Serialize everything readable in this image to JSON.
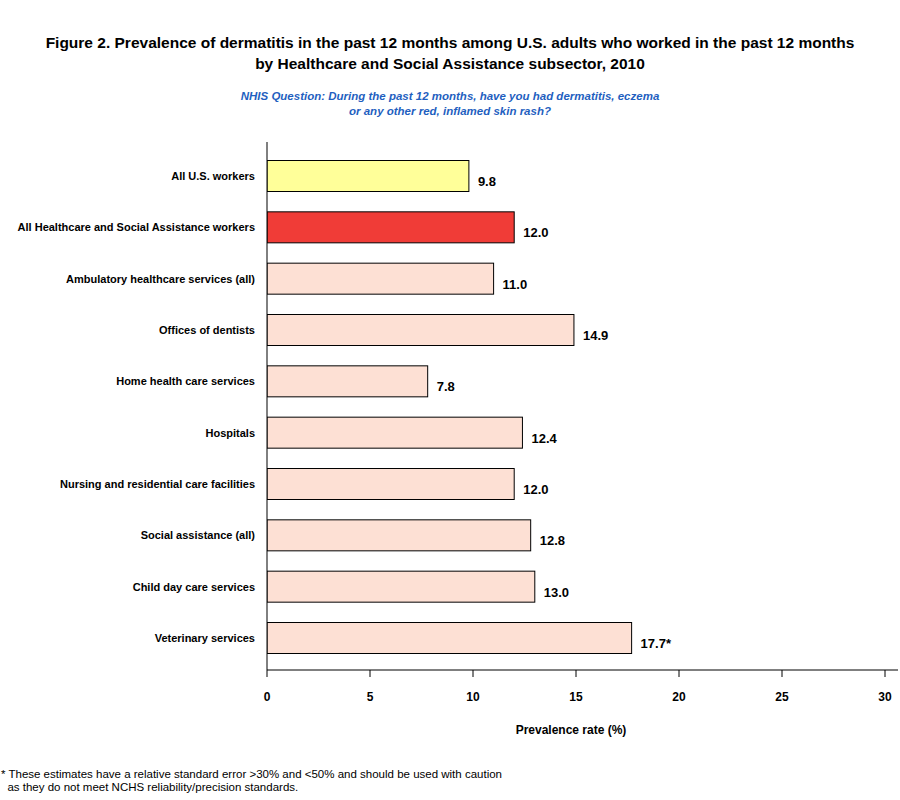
{
  "chart_data": {
    "type": "bar",
    "orientation": "horizontal",
    "title": [
      "Figure 2. Prevalence of dermatitis in the past 12 months among U.S. adults who worked in the past 12 months",
      "by Healthcare and Social Assistance subsector, 2010"
    ],
    "subtitle": [
      "NHIS Question: During the past 12 months, have you had dermatitis, eczema",
      "or any other red, inflamed skin rash?"
    ],
    "categories": [
      "All U.S. workers",
      "All Healthcare and Social Assistance workers",
      "Ambulatory healthcare services (all)",
      "Offices of dentists",
      "Home health care services",
      "Hospitals",
      "Nursing and residential care facilities",
      "Social assistance (all)",
      "Child day care services",
      "Veterinary services"
    ],
    "values": [
      9.8,
      12.0,
      11.0,
      14.9,
      7.8,
      12.4,
      12.0,
      12.8,
      13.0,
      17.7
    ],
    "value_labels": [
      "9.8",
      "12.0",
      "11.0",
      "14.9",
      "7.8",
      "12.4",
      "12.0",
      "12.8",
      "13.0",
      "17.7*"
    ],
    "colors": [
      "#ffff99",
      "#f03c37",
      "#fde0d4",
      "#fde0d4",
      "#fde0d4",
      "#fde0d4",
      "#fde0d4",
      "#fde0d4",
      "#fde0d4",
      "#fde0d4"
    ],
    "data_labels": true,
    "grid": false,
    "x_label": "Prevalence rate (%)",
    "xlim": [
      0,
      30
    ],
    "xticks": [
      0,
      5,
      10,
      15,
      20,
      25,
      30
    ],
    "footnote": [
      "* These estimates have a relative standard error >30% and <50% and should be used with caution",
      "  as they do not meet NCHS reliability/precision standards."
    ]
  }
}
